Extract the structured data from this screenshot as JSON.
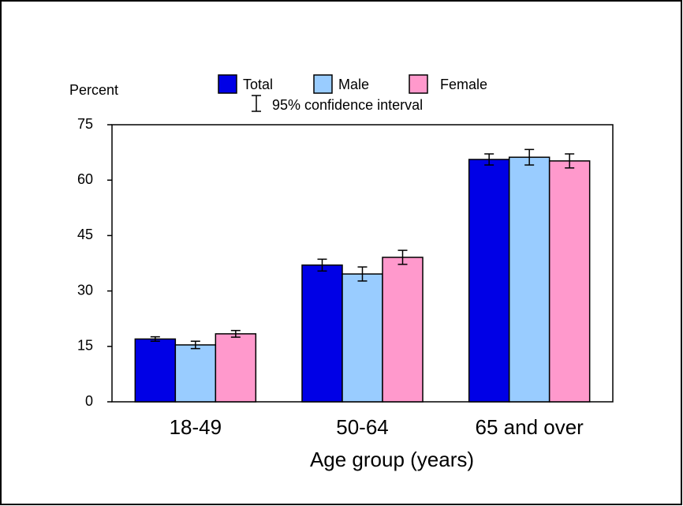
{
  "chart_data": {
    "type": "bar",
    "y_label": "Percent",
    "x_label": "Age group (years)",
    "ci_label": "95% confidence interval",
    "categories": [
      "18-49",
      "50-64",
      "65 and over"
    ],
    "series": [
      {
        "name": "Total",
        "color": "#0000e6",
        "values": [
          17,
          37,
          65.6
        ],
        "errors": [
          0.6,
          1.6,
          1.5
        ]
      },
      {
        "name": "Male",
        "color": "#99ccff",
        "values": [
          15.4,
          34.6,
          66.2
        ],
        "errors": [
          1,
          1.9,
          2.1
        ]
      },
      {
        "name": "Female",
        "color": "#ff99cc",
        "values": [
          18.4,
          39.1,
          65.2
        ],
        "errors": [
          0.9,
          1.9,
          1.9
        ]
      }
    ],
    "ylim": [
      0,
      75
    ],
    "yticks": [
      0,
      15,
      30,
      45,
      60,
      75
    ],
    "grid": false
  }
}
